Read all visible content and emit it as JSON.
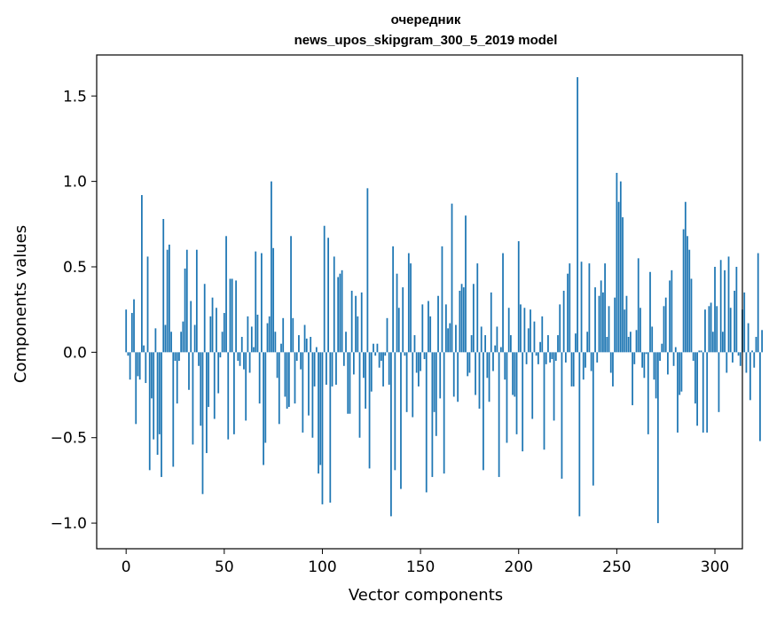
{
  "chart_data": {
    "type": "bar",
    "title_line1": "очередник",
    "title_line2": "news_upos_skipgram_300_5_2019 model",
    "xlabel": "Vector components",
    "ylabel": "Components values",
    "xlim": [
      -15,
      314
    ],
    "ylim": [
      -1.15,
      1.74
    ],
    "xticks": [
      0,
      50,
      100,
      150,
      200,
      250,
      300
    ],
    "xtick_labels": [
      "0",
      "50",
      "100",
      "150",
      "200",
      "250",
      "300"
    ],
    "yticks": [
      -1.0,
      -0.5,
      0.0,
      0.5,
      1.0,
      1.5
    ],
    "ytick_labels": [
      "−1.0",
      "−0.5",
      "0.0",
      "0.5",
      "1.0",
      "1.5"
    ],
    "bar_color": "#1f77b4",
    "grid": false,
    "values": [
      0.25,
      -0.02,
      -0.16,
      0.23,
      0.31,
      -0.42,
      -0.14,
      -0.16,
      0.92,
      0.04,
      -0.18,
      0.56,
      -0.69,
      -0.27,
      -0.51,
      0.14,
      -0.6,
      -0.48,
      -0.73,
      0.78,
      0.16,
      0.6,
      0.63,
      0.12,
      -0.67,
      -0.05,
      -0.3,
      -0.05,
      0.12,
      0.18,
      0.49,
      0.6,
      -0.22,
      0.3,
      -0.54,
      0.16,
      0.6,
      -0.08,
      -0.43,
      -0.83,
      0.4,
      -0.59,
      -0.32,
      0.21,
      0.32,
      -0.39,
      0.26,
      -0.24,
      -0.03,
      0.12,
      0.23,
      0.68,
      -0.51,
      0.43,
      0.43,
      -0.48,
      0.42,
      -0.05,
      -0.08,
      0.09,
      -0.1,
      -0.4,
      0.21,
      -0.12,
      0.15,
      0.03,
      0.59,
      0.22,
      -0.3,
      0.58,
      -0.66,
      -0.53,
      0.17,
      0.21,
      1.0,
      0.61,
      0.12,
      -0.15,
      -0.42,
      0.05,
      0.2,
      -0.26,
      -0.33,
      -0.32,
      0.68,
      0.2,
      -0.3,
      -0.05,
      0.1,
      -0.1,
      -0.47,
      0.16,
      0.08,
      -0.37,
      0.09,
      -0.5,
      -0.2,
      0.03,
      -0.71,
      -0.66,
      -0.89,
      0.74,
      -0.19,
      0.67,
      -0.88,
      -0.2,
      0.56,
      -0.19,
      0.44,
      0.46,
      0.48,
      -0.08,
      0.12,
      -0.36,
      -0.36,
      0.36,
      -0.13,
      0.33,
      0.21,
      -0.5,
      0.35,
      -0.15,
      -0.33,
      0.96,
      -0.68,
      -0.23,
      0.05,
      -0.02,
      0.05,
      -0.09,
      -0.05,
      -0.2,
      -0.02,
      0.2,
      -0.19,
      -0.96,
      0.62,
      -0.69,
      0.46,
      0.26,
      -0.8,
      0.38,
      -0.02,
      -0.35,
      0.58,
      0.52,
      -0.38,
      0.1,
      -0.12,
      -0.2,
      -0.11,
      0.28,
      -0.04,
      -0.82,
      0.3,
      0.21,
      -0.73,
      -0.35,
      -0.49,
      0.33,
      -0.27,
      0.62,
      -0.71,
      0.28,
      0.14,
      0.17,
      0.87,
      -0.26,
      0.16,
      -0.29,
      0.36,
      0.4,
      0.38,
      0.8,
      -0.14,
      -0.12,
      0.1,
      0.4,
      -0.25,
      0.52,
      -0.33,
      0.15,
      -0.69,
      0.1,
      -0.15,
      -0.29,
      0.35,
      -0.11,
      0.04,
      0.15,
      -0.73,
      0.03,
      0.58,
      -0.16,
      -0.53,
      0.26,
      0.1,
      -0.25,
      -0.26,
      -0.48,
      0.65,
      0.28,
      -0.58,
      0.26,
      -0.07,
      0.14,
      0.25,
      -0.39,
      0.18,
      -0.02,
      -0.07,
      0.06,
      0.21,
      -0.57,
      -0.07,
      0.1,
      -0.06,
      -0.04,
      -0.4,
      -0.05,
      0.1,
      0.28,
      -0.74,
      0.36,
      -0.06,
      0.46,
      0.52,
      -0.2,
      -0.2,
      0.11,
      1.61,
      -0.96,
      0.53,
      -0.16,
      -0.09,
      0.12,
      0.52,
      -0.11,
      -0.78,
      0.38,
      -0.06,
      0.33,
      0.42,
      0.35,
      0.52,
      0.09,
      0.27,
      -0.12,
      -0.2,
      0.32,
      1.05,
      0.88,
      1.0,
      0.79,
      0.25,
      0.33,
      0.09,
      0.12,
      -0.31,
      -0.07,
      0.13,
      0.55,
      0.26,
      -0.09,
      -0.15,
      -0.01,
      -0.48,
      0.47,
      0.15,
      -0.16,
      -0.27,
      -1.0,
      -0.05,
      0.05,
      0.27,
      0.32,
      -0.13,
      0.42,
      0.48,
      -0.08,
      0.03,
      -0.47,
      -0.25,
      -0.23,
      0.72,
      0.88,
      0.68,
      0.6,
      0.43,
      -0.05,
      -0.3,
      -0.43,
      0.01,
      0.01,
      -0.47,
      0.25,
      -0.47,
      0.27,
      0.29,
      0.12,
      0.5,
      0.27,
      -0.35,
      0.54,
      0.12,
      0.48,
      -0.12,
      0.56,
      0.26,
      -0.06,
      0.36,
      0.5,
      -0.02,
      -0.08,
      0.25,
      0.35,
      -0.12,
      0.17,
      -0.28,
      0.01,
      -0.09,
      0.09,
      0.58,
      -0.52,
      0.13
    ]
  }
}
